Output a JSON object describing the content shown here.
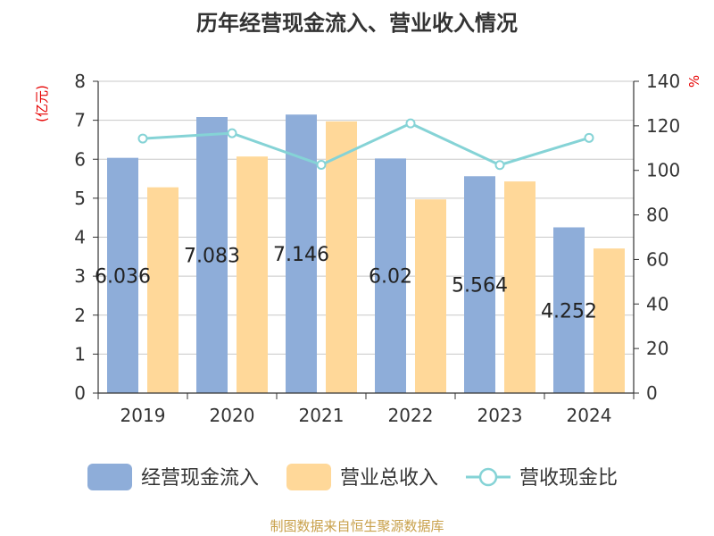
{
  "title": "历年经营现金流入、营业收入情况",
  "source": "制图数据来自恒生聚源数据库",
  "colors": {
    "series1": "#8eadd9",
    "series2": "#ffd899",
    "series3": "#85d3d6",
    "unit": "#e60000"
  },
  "chart_data": {
    "type": "bar",
    "categories": [
      "2019",
      "2020",
      "2021",
      "2022",
      "2023",
      "2024"
    ],
    "y_left_unit": "(亿元)",
    "y_right_unit": "%",
    "ylim_left": [
      0,
      8
    ],
    "ylim_right": [
      0,
      140
    ],
    "yticks_left": [
      "0",
      "1",
      "2",
      "3",
      "4",
      "5",
      "6",
      "7",
      "8"
    ],
    "yticks_right": [
      "0",
      "20",
      "40",
      "60",
      "80",
      "100",
      "120",
      "140"
    ],
    "grid": true,
    "legend_position": "bottom",
    "series": [
      {
        "name": "经营现金流入",
        "type": "bar",
        "axis": "left",
        "values": [
          6.036,
          7.083,
          7.146,
          6.02,
          5.564,
          4.252
        ],
        "labels": [
          "6.036",
          "7.083",
          "7.146",
          "6.02",
          "5.564",
          "4.252"
        ]
      },
      {
        "name": "营业总收入",
        "type": "bar",
        "axis": "left",
        "values": [
          5.28,
          6.07,
          6.97,
          4.97,
          5.43,
          3.71
        ]
      },
      {
        "name": "营收现金比",
        "type": "line",
        "axis": "right",
        "values": [
          114.3,
          116.7,
          102.5,
          121.1,
          102.4,
          114.6
        ]
      }
    ]
  }
}
